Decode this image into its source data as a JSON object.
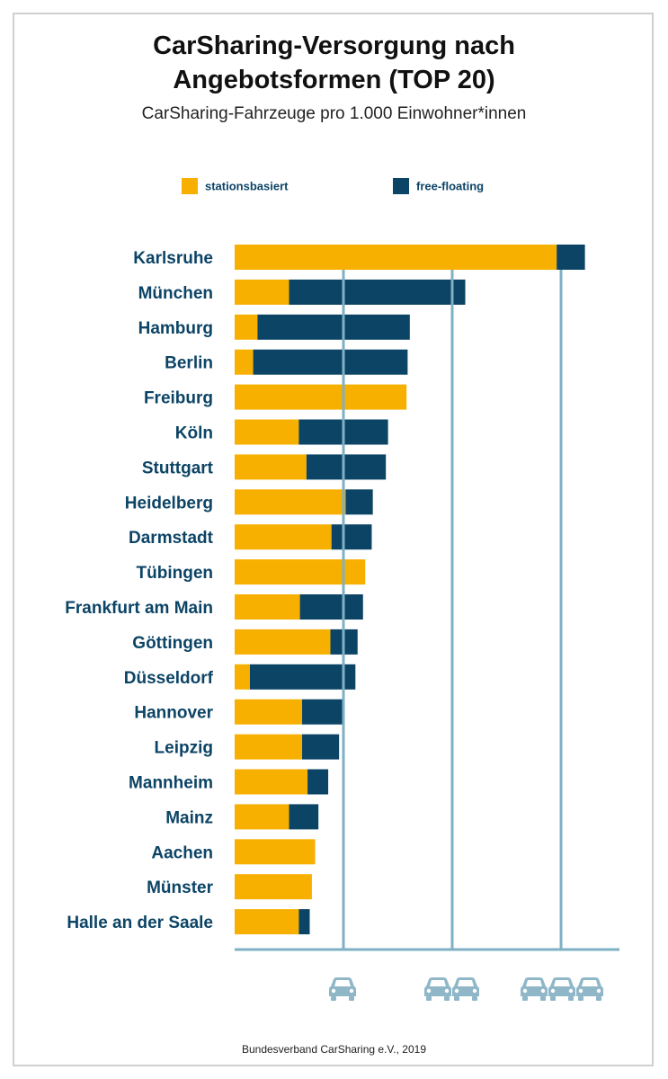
{
  "title_line1": "CarSharing-Versorgung nach",
  "title_line2": "Angebotsformen (TOP 20)",
  "subtitle": "CarSharing-Fahrzeuge pro 1.000 Einwohner*innen",
  "source": "Bundesverband CarSharing e.V., 2019",
  "colors": {
    "stationsbasiert": "#f8b000",
    "free_floating": "#0c4466",
    "grid": "#7fb0c4",
    "label": "#0c4466"
  },
  "chart_data": {
    "type": "bar",
    "orientation": "horizontal",
    "stacked": true,
    "categories": [
      "Karlsruhe",
      "München",
      "Hamburg",
      "Berlin",
      "Freiburg",
      "Köln",
      "Stuttgart",
      "Heidelberg",
      "Darmstadt",
      "Tübingen",
      "Frankfurt am Main",
      "Göttingen",
      "Düsseldorf",
      "Hannover",
      "Leipzig",
      "Mannheim",
      "Mainz",
      "Aachen",
      "Münster",
      "Halle an der Saale"
    ],
    "series": [
      {
        "name": "stationsbasiert",
        "values": [
          2.96,
          0.5,
          0.21,
          0.17,
          1.58,
          0.59,
          0.66,
          1.02,
          0.89,
          1.2,
          0.6,
          0.88,
          0.14,
          0.62,
          0.62,
          0.67,
          0.5,
          0.74,
          0.71,
          0.59
        ]
      },
      {
        "name": "free-floating",
        "values": [
          0.26,
          1.62,
          1.4,
          1.42,
          0.0,
          0.82,
          0.73,
          0.25,
          0.37,
          0.0,
          0.58,
          0.25,
          0.97,
          0.37,
          0.34,
          0.19,
          0.27,
          0.0,
          0.0,
          0.1
        ]
      }
    ],
    "xlim": [
      0,
      3.5
    ],
    "gridlines": [
      1,
      2,
      3
    ],
    "grid": true,
    "legend": "top",
    "axis_icons": [
      "car-icon x1",
      "car-icon x2",
      "car-icon x3"
    ]
  }
}
